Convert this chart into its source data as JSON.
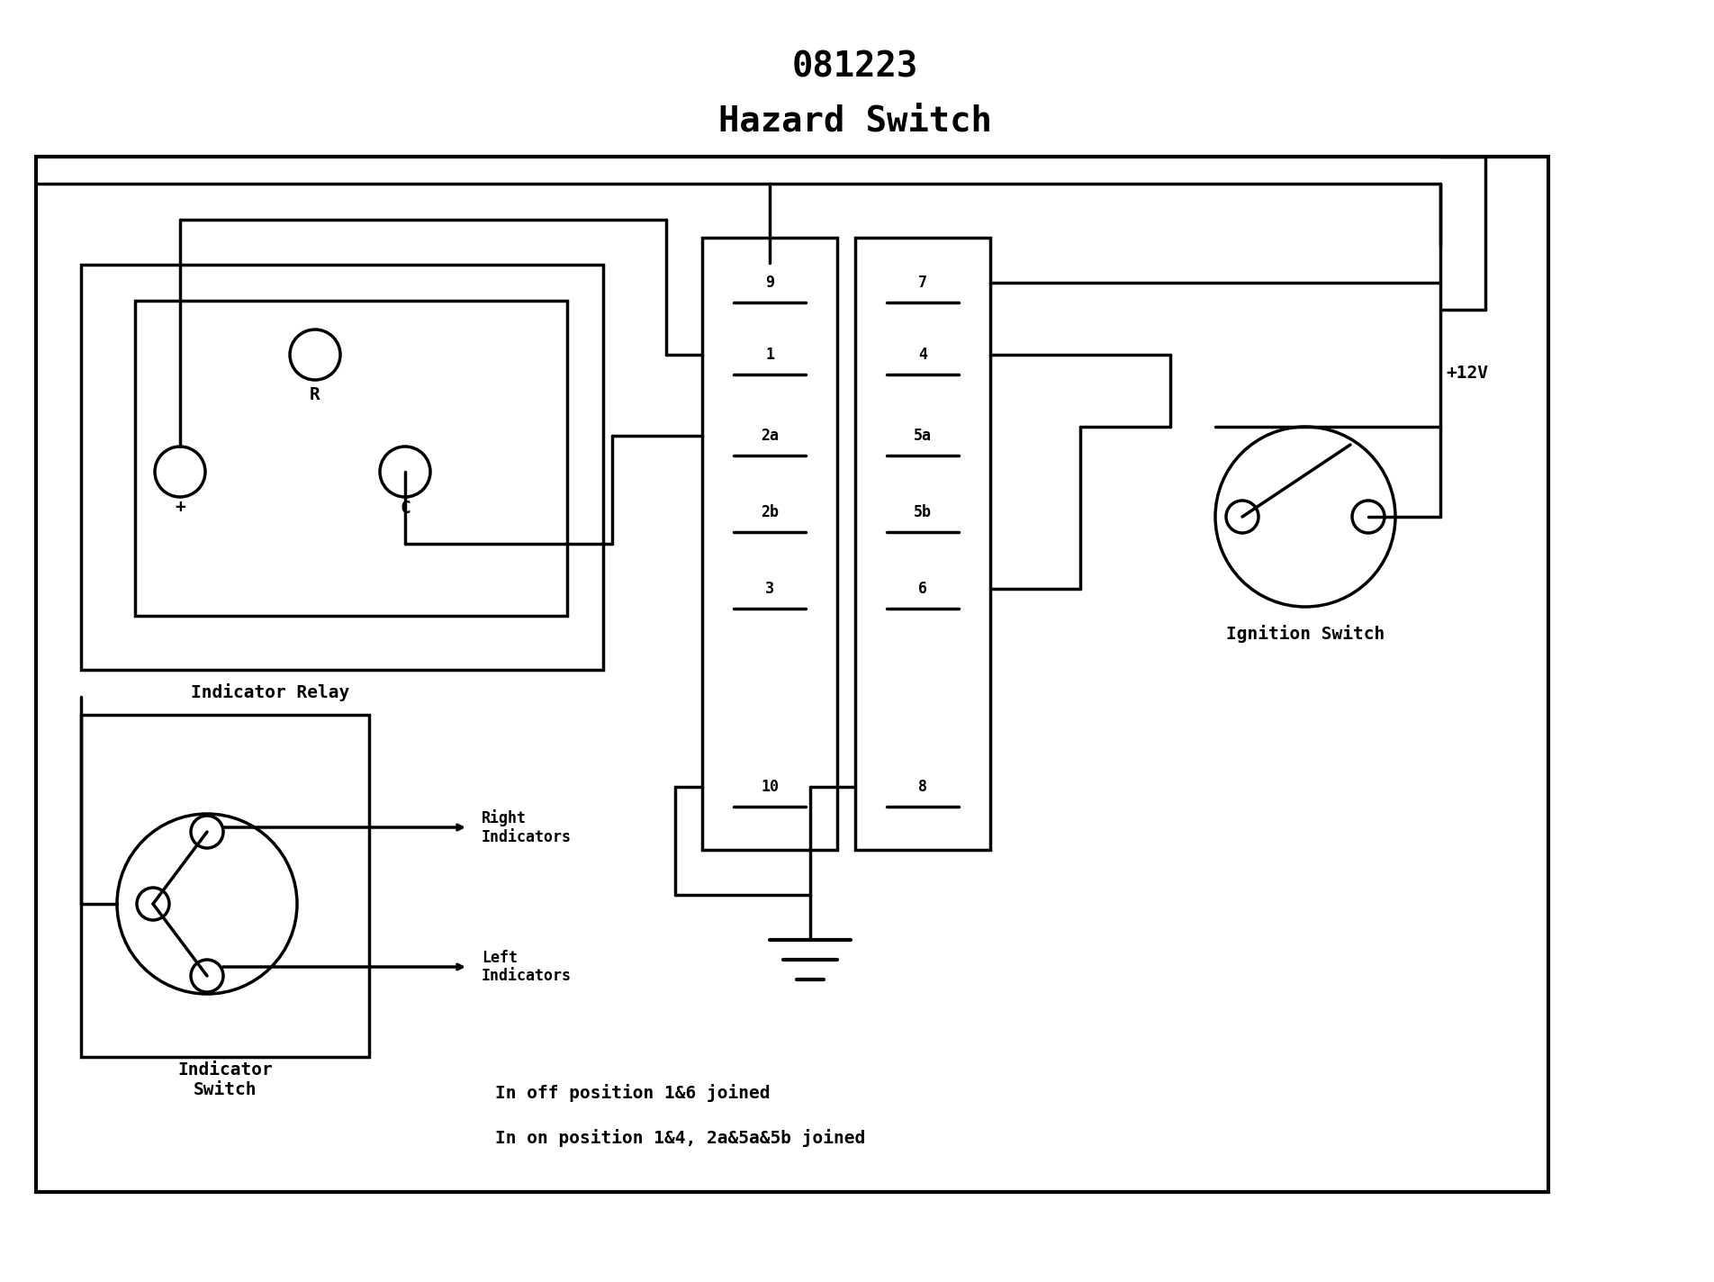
{
  "title_line1": "081223",
  "title_line2": "Hazard Switch",
  "bg_color": "#ffffff",
  "line_color": "#000000",
  "title_fontsize": 28,
  "label_fontsize": 14,
  "small_fontsize": 12,
  "connector_labels_left": [
    "9",
    "1",
    "2a",
    "2b",
    "3",
    "10"
  ],
  "connector_labels_right": [
    "7",
    "4",
    "5a",
    "5b",
    "6",
    "8"
  ],
  "note_line1": "In off position 1&6 joined",
  "note_line2": "In on position 1&4, 2a&5a&5b joined"
}
